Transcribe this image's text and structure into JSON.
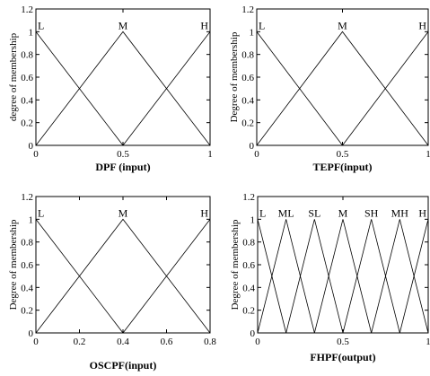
{
  "chart_data": [
    {
      "type": "line",
      "xlabel": "DPF (input)",
      "ylabel": "degree of membership",
      "xlim": [
        0,
        1
      ],
      "ylim": [
        0,
        1.2
      ],
      "x_ticks": [
        "0",
        "0.5",
        "1"
      ],
      "y_ticks": [
        "0",
        "0.2",
        "0.4",
        "0.6",
        "0.8",
        "1",
        "1.2"
      ],
      "membership_functions": [
        {
          "name": "L",
          "points": [
            [
              0,
              1
            ],
            [
              0.5,
              0
            ]
          ],
          "label_x": 0
        },
        {
          "name": "M",
          "points": [
            [
              0,
              0
            ],
            [
              0.5,
              1
            ],
            [
              1,
              0
            ]
          ],
          "label_x": 0.5
        },
        {
          "name": "H",
          "points": [
            [
              0.5,
              0
            ],
            [
              1,
              1
            ]
          ],
          "label_x": 1
        }
      ]
    },
    {
      "type": "line",
      "xlabel": "TEPF(input)",
      "ylabel": "Degree of membership",
      "xlim": [
        0,
        1
      ],
      "ylim": [
        0,
        1.2
      ],
      "x_ticks": [
        "0",
        "0.5",
        "1"
      ],
      "y_ticks": [
        "0",
        "0.2",
        "0.4",
        "0.6",
        "0.8",
        "1",
        "1.2"
      ],
      "membership_functions": [
        {
          "name": "L",
          "points": [
            [
              0,
              1
            ],
            [
              0.5,
              0
            ]
          ],
          "label_x": 0
        },
        {
          "name": "M",
          "points": [
            [
              0,
              0
            ],
            [
              0.5,
              1
            ],
            [
              1,
              0
            ]
          ],
          "label_x": 0.5
        },
        {
          "name": "H",
          "points": [
            [
              0.5,
              0
            ],
            [
              1,
              1
            ]
          ],
          "label_x": 1
        }
      ]
    },
    {
      "type": "line",
      "xlabel": "OSCPF(input)",
      "ylabel": "Degree of membership",
      "xlim": [
        0,
        0.8
      ],
      "ylim": [
        0,
        1.2
      ],
      "x_ticks": [
        "0",
        "0.2",
        "0.4",
        "0.6",
        "0.8"
      ],
      "y_ticks": [
        "0",
        "0.2",
        "0.4",
        "0.6",
        "0.8",
        "1",
        "1.2"
      ],
      "membership_functions": [
        {
          "name": "L",
          "points": [
            [
              0,
              1
            ],
            [
              0.4,
              0
            ]
          ],
          "label_x": 0
        },
        {
          "name": "M",
          "points": [
            [
              0,
              0
            ],
            [
              0.4,
              1
            ],
            [
              0.8,
              0
            ]
          ],
          "label_x": 0.4
        },
        {
          "name": "H",
          "points": [
            [
              0.4,
              0
            ],
            [
              0.8,
              1
            ]
          ],
          "label_x": 0.8
        }
      ]
    },
    {
      "type": "line",
      "xlabel": "FHPF(output)",
      "ylabel": "Degree of membership",
      "xlim": [
        0,
        1
      ],
      "ylim": [
        0,
        1.2
      ],
      "x_ticks": [
        "0",
        "0.5",
        "1"
      ],
      "y_ticks": [
        "0",
        "0.2",
        "0.4",
        "0.6",
        "0.8",
        "1",
        "1.2"
      ],
      "membership_functions": [
        {
          "name": "L",
          "points": [
            [
              0,
              1
            ],
            [
              0.1667,
              0
            ]
          ],
          "label_x": 0
        },
        {
          "name": "ML",
          "points": [
            [
              0,
              0
            ],
            [
              0.1667,
              1
            ],
            [
              0.3333,
              0
            ]
          ],
          "label_x": 0.1667
        },
        {
          "name": "SL",
          "points": [
            [
              0.1667,
              0
            ],
            [
              0.3333,
              1
            ],
            [
              0.5,
              0
            ]
          ],
          "label_x": 0.3333
        },
        {
          "name": "M",
          "points": [
            [
              0.3333,
              0
            ],
            [
              0.5,
              1
            ],
            [
              0.6667,
              0
            ]
          ],
          "label_x": 0.5
        },
        {
          "name": "SH",
          "points": [
            [
              0.5,
              0
            ],
            [
              0.6667,
              1
            ],
            [
              0.8333,
              0
            ]
          ],
          "label_x": 0.6667
        },
        {
          "name": "MH",
          "points": [
            [
              0.6667,
              0
            ],
            [
              0.8333,
              1
            ],
            [
              1,
              0
            ]
          ],
          "label_x": 0.8333
        },
        {
          "name": "H",
          "points": [
            [
              0.8333,
              0
            ],
            [
              1,
              1
            ]
          ],
          "label_x": 1
        }
      ]
    }
  ]
}
